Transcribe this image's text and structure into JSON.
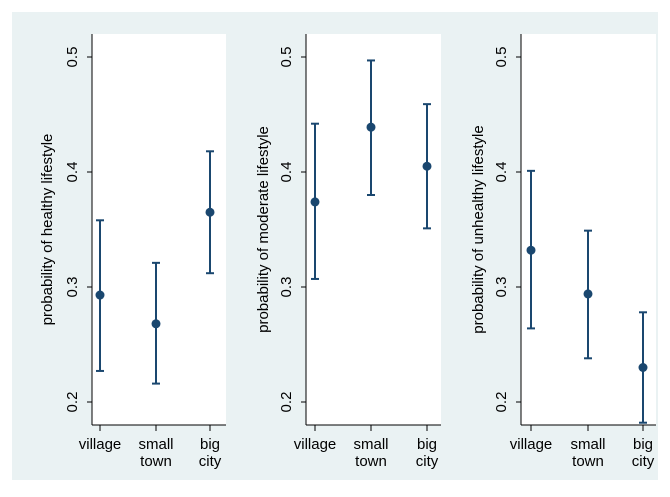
{
  "chart_data": [
    {
      "type": "scatter",
      "error_bars": true,
      "title": "",
      "xlabel": "",
      "ylabel": "probability of healthy lifestyle",
      "categories": [
        "village",
        "small town",
        "big city"
      ],
      "category_lines": [
        [
          "village"
        ],
        [
          "small",
          "town"
        ],
        [
          "big",
          "city"
        ]
      ],
      "ylim": [
        0.18,
        0.52
      ],
      "yticks": [
        0.2,
        0.3,
        0.4,
        0.5
      ],
      "ytick_labels": [
        "0.2",
        "0.3",
        "0.4",
        "0.5"
      ],
      "values": [
        0.293,
        0.268,
        0.365
      ],
      "lower": [
        0.227,
        0.216,
        0.312
      ],
      "upper": [
        0.358,
        0.321,
        0.418
      ],
      "grid": false
    },
    {
      "type": "scatter",
      "error_bars": true,
      "title": "",
      "xlabel": "",
      "ylabel": "probability of moderate lifestyle",
      "categories": [
        "village",
        "small town",
        "big city"
      ],
      "category_lines": [
        [
          "village"
        ],
        [
          "small",
          "town"
        ],
        [
          "big",
          "city"
        ]
      ],
      "ylim": [
        0.18,
        0.52
      ],
      "yticks": [
        0.2,
        0.3,
        0.4,
        0.5
      ],
      "ytick_labels": [
        "0.2",
        "0.3",
        "0.4",
        "0.5"
      ],
      "values": [
        0.374,
        0.439,
        0.405
      ],
      "lower": [
        0.307,
        0.38,
        0.351
      ],
      "upper": [
        0.442,
        0.497,
        0.459
      ],
      "grid": false
    },
    {
      "type": "scatter",
      "error_bars": true,
      "title": "",
      "xlabel": "",
      "ylabel": "probability of unhealthy lifestyle",
      "categories": [
        "village",
        "small town",
        "big city"
      ],
      "category_lines": [
        [
          "village"
        ],
        [
          "small",
          "town"
        ],
        [
          "big",
          "city"
        ]
      ],
      "ylim": [
        0.18,
        0.52
      ],
      "yticks": [
        0.2,
        0.3,
        0.4,
        0.5
      ],
      "ytick_labels": [
        "0.2",
        "0.3",
        "0.4",
        "0.5"
      ],
      "values": [
        0.332,
        0.294,
        0.23
      ],
      "lower": [
        0.264,
        0.238,
        0.182
      ],
      "upper": [
        0.401,
        0.349,
        0.278
      ],
      "grid": false
    }
  ],
  "colors": {
    "outer_background": "#eaf2f3",
    "plot_background": "#ffffff",
    "marker": "#1a476f",
    "axis": "#000000",
    "text": "#000000"
  }
}
